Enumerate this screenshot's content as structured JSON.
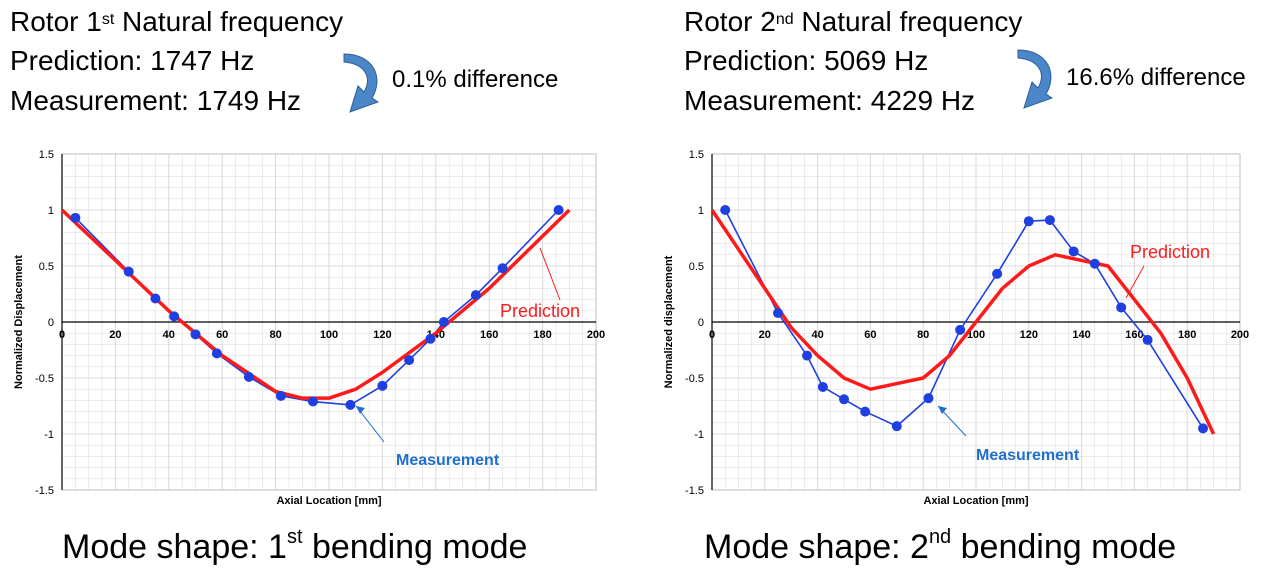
{
  "colors": {
    "measurement": "#1f3fe0",
    "prediction": "#ff1a1a",
    "annotation_blue": "#1f6fd1",
    "arrow_fill": "#4a86c8",
    "grid": "#d9d9d9"
  },
  "panels": [
    {
      "title_pre": "Rotor 1",
      "title_sup": "st",
      "title_post": " Natural frequency",
      "prediction_text": "Prediction: 1747 Hz",
      "measurement_text": "Measurement: 1749 Hz",
      "difference_text": "0.1% difference",
      "caption_pre": "Mode shape: 1",
      "caption_sup": "st",
      "caption_post": " bending mode"
    },
    {
      "title_pre": "Rotor 2",
      "title_sup": "nd",
      "title_post": " Natural frequency",
      "prediction_text": "Prediction: 5069 Hz",
      "measurement_text": "Measurement: 4229 Hz",
      "difference_text": "16.6% difference",
      "caption_pre": "Mode shape: 2",
      "caption_sup": "nd",
      "caption_post": " bending mode"
    }
  ],
  "chart_data": [
    {
      "type": "line",
      "xlabel": "Axial Location [mm]",
      "ylabel": "Normalized Displacement",
      "xlim": [
        0,
        200
      ],
      "ylim": [
        -1.5,
        1.5
      ],
      "xticks": [
        "0",
        "20",
        "40",
        "60",
        "80",
        "100",
        "120",
        "140",
        "160",
        "180",
        "200"
      ],
      "yticks": [
        "1.5",
        "1",
        "0.5",
        "0",
        "-0.5",
        "-1",
        "-1.5"
      ],
      "grid": true,
      "series": [
        {
          "name": "Measurement",
          "marker": "circle",
          "x": [
            5,
            25,
            35,
            42,
            50,
            58,
            70,
            82,
            94,
            108,
            120,
            130,
            138,
            143,
            155,
            165,
            186
          ],
          "y": [
            0.93,
            0.45,
            0.21,
            0.05,
            -0.11,
            -0.28,
            -0.49,
            -0.66,
            -0.71,
            -0.74,
            -0.57,
            -0.34,
            -0.15,
            0.0,
            0.24,
            0.48,
            1.0
          ]
        },
        {
          "name": "Prediction",
          "marker": "none",
          "x": [
            0,
            20,
            40,
            60,
            80,
            90,
            100,
            110,
            120,
            140,
            160,
            190
          ],
          "y": [
            1.0,
            0.55,
            0.1,
            -0.3,
            -0.62,
            -0.68,
            -0.68,
            -0.6,
            -0.45,
            -0.1,
            0.3,
            1.0
          ]
        }
      ],
      "annotations": {
        "measurement_label": "Measurement",
        "prediction_label": "Prediction"
      }
    },
    {
      "type": "line",
      "xlabel": "Axial Location [mm]",
      "ylabel": "Normalized displacement",
      "xlim": [
        0,
        200
      ],
      "ylim": [
        -1.5,
        1.5
      ],
      "xticks": [
        "0",
        "20",
        "40",
        "60",
        "80",
        "100",
        "120",
        "140",
        "160",
        "180",
        "200"
      ],
      "yticks": [
        "1.5",
        "1",
        "0.5",
        "0",
        "-0.5",
        "-1",
        "-1.5"
      ],
      "grid": true,
      "series": [
        {
          "name": "Measurement",
          "marker": "circle",
          "x": [
            5,
            25,
            36,
            42,
            50,
            58,
            70,
            82,
            94,
            108,
            120,
            128,
            137,
            145,
            155,
            165,
            186
          ],
          "y": [
            1.0,
            0.08,
            -0.3,
            -0.58,
            -0.69,
            -0.8,
            -0.93,
            -0.68,
            -0.07,
            0.43,
            0.9,
            0.91,
            0.63,
            0.52,
            0.13,
            -0.16,
            -0.95
          ]
        },
        {
          "name": "Prediction",
          "marker": "none",
          "x": [
            0,
            10,
            20,
            30,
            40,
            50,
            60,
            70,
            80,
            90,
            100,
            110,
            120,
            130,
            140,
            150,
            160,
            170,
            180,
            190
          ],
          "y": [
            1.0,
            0.65,
            0.3,
            -0.05,
            -0.3,
            -0.5,
            -0.6,
            -0.55,
            -0.5,
            -0.3,
            0.0,
            0.3,
            0.5,
            0.6,
            0.55,
            0.5,
            0.2,
            -0.1,
            -0.5,
            -1.0
          ]
        }
      ],
      "annotations": {
        "measurement_label": "Measurement",
        "prediction_label": "Prediction"
      }
    }
  ]
}
